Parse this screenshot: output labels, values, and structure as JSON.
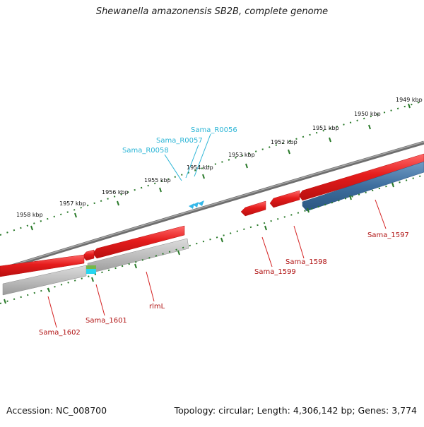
{
  "title": "Shewanella amazonensis SB2B, complete genome",
  "footer": {
    "accession": "Accession: NC_008700",
    "summary": "Topology: circular; Length: 4,306,142 bp; Genes: 3,774"
  },
  "ruler_labels": [
    "1949 kbp",
    "1950 kbp",
    "1951 kbp",
    "1952 kbp",
    "1953 kbp",
    "1954 kbp",
    "1955 kbp",
    "1956 kbp",
    "1957 kbp",
    "1958 kbp"
  ],
  "gene_labels": {
    "Sama_1597": "Sama_1597",
    "Sama_1598": "Sama_1598",
    "Sama_1599": "Sama_1599",
    "rlmL": "rlmL",
    "Sama_1601": "Sama_1601",
    "Sama_1602": "Sama_1602",
    "Sama_R0056": "Sama_R0056",
    "Sama_R0057": "Sama_R0057",
    "Sama_R0058": "Sama_R0058"
  },
  "colors": {
    "backbone": "#7a7a7a",
    "cds_forward": "#e51c1c",
    "cds_reverse_gray": "#b9b9b9",
    "cds_reverse_blue": "#3d6e9e",
    "trna": "#35b7e8",
    "tick": "#2a7a2a",
    "label_red": "#b01212",
    "label_cyan": "#2bb5d6"
  }
}
